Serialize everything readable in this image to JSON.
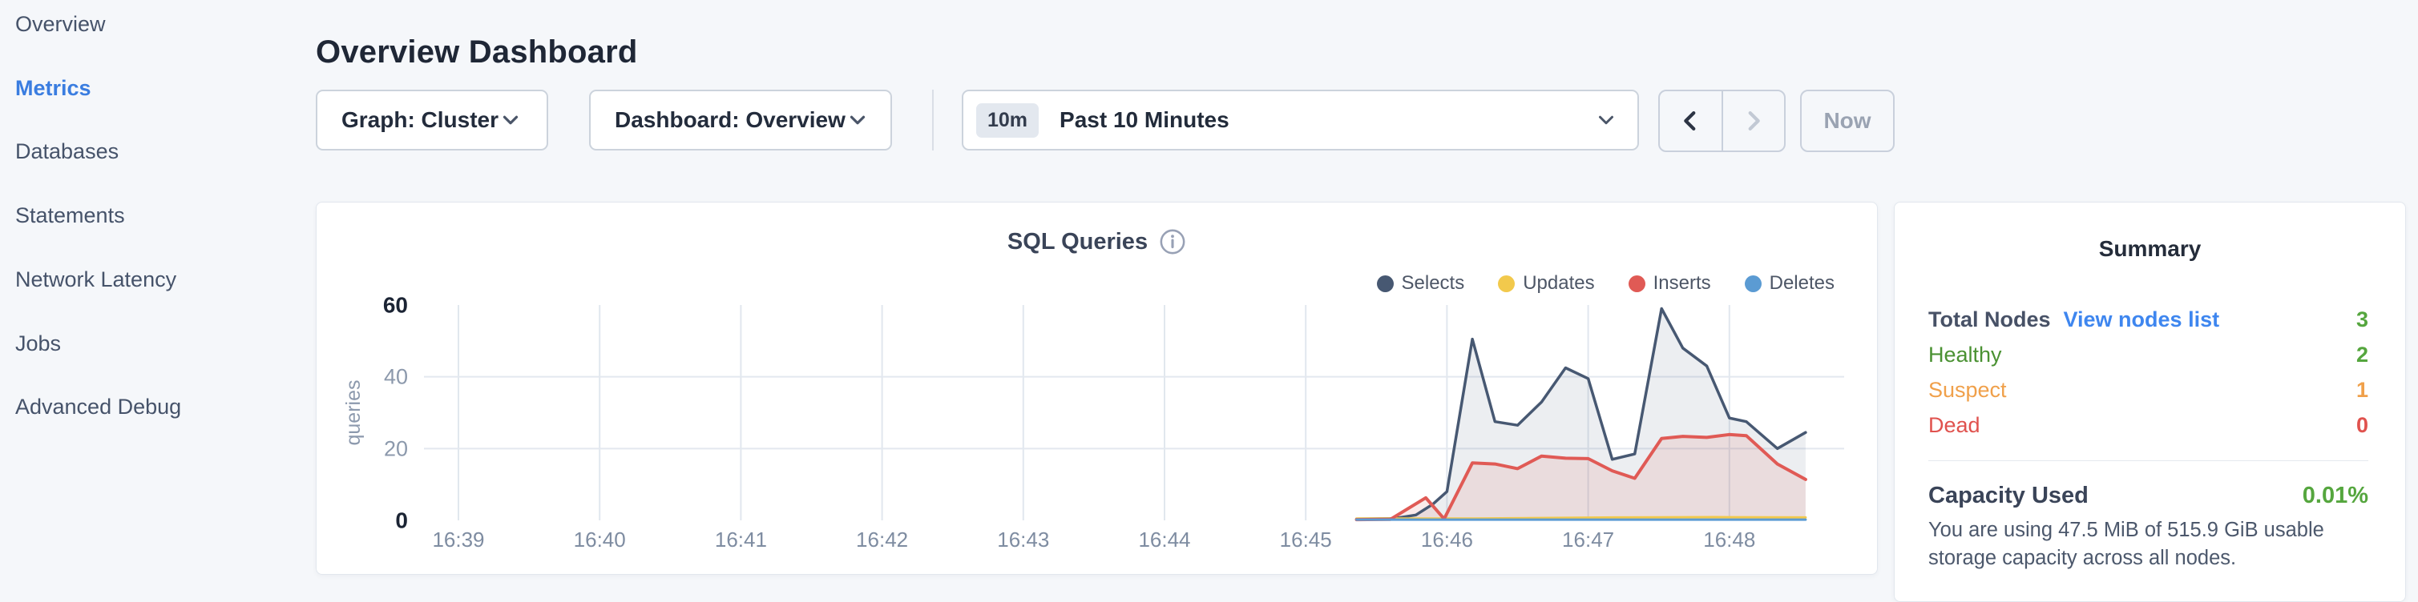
{
  "sidebar": {
    "items": [
      {
        "label": "Overview",
        "active": false
      },
      {
        "label": "Metrics",
        "active": true
      },
      {
        "label": "Databases",
        "active": false
      },
      {
        "label": "Statements",
        "active": false
      },
      {
        "label": "Network Latency",
        "active": false
      },
      {
        "label": "Jobs",
        "active": false
      },
      {
        "label": "Advanced Debug",
        "active": false
      }
    ],
    "active_color": "#3a7de0"
  },
  "header": {
    "title": "Overview Dashboard"
  },
  "controls": {
    "graph_dropdown": {
      "label": "Graph: Cluster"
    },
    "dashboard_dropdown": {
      "label": "Dashboard: Overview"
    },
    "time_window": {
      "badge": "10m",
      "label": "Past 10 Minutes"
    },
    "now_button": {
      "label": "Now",
      "disabled": true
    },
    "prev_arrow": {
      "enabled": true
    },
    "next_arrow": {
      "enabled": false
    }
  },
  "chart_data": {
    "type": "line",
    "title": "SQL Queries",
    "ylabel": "queries",
    "xlabel": "",
    "x_unit": "minutes after 16:39",
    "xlim": [
      -0.26,
      9.8
    ],
    "ylim": [
      0,
      60
    ],
    "grid": true,
    "grid_y_values": [
      20,
      40
    ],
    "legend_position": "top-right",
    "x_ticks": [
      {
        "m": 0,
        "label": "16:39"
      },
      {
        "m": 1,
        "label": "16:40"
      },
      {
        "m": 2,
        "label": "16:41"
      },
      {
        "m": 3,
        "label": "16:42"
      },
      {
        "m": 4,
        "label": "16:43"
      },
      {
        "m": 5,
        "label": "16:44"
      },
      {
        "m": 6,
        "label": "16:45"
      },
      {
        "m": 7,
        "label": "16:46"
      },
      {
        "m": 8,
        "label": "16:47"
      },
      {
        "m": 9,
        "label": "16:48"
      }
    ],
    "y_ticks": [
      {
        "v": 0,
        "label": "0",
        "bold": true
      },
      {
        "v": 20,
        "label": "20",
        "bold": false
      },
      {
        "v": 40,
        "label": "40",
        "bold": false
      },
      {
        "v": 60,
        "label": "60",
        "bold": true
      }
    ],
    "series": [
      {
        "name": "Selects",
        "color": "#475872",
        "fill": "rgba(71,88,114,0.10)",
        "width": 3.5,
        "points": [
          [
            6.36,
            0.4
          ],
          [
            6.62,
            0.5
          ],
          [
            6.78,
            1.5
          ],
          [
            6.9,
            4.5
          ],
          [
            7.0,
            8
          ],
          [
            7.18,
            50.5
          ],
          [
            7.34,
            27.5
          ],
          [
            7.5,
            26.5
          ],
          [
            7.67,
            33
          ],
          [
            7.84,
            42.5
          ],
          [
            8.0,
            39.5
          ],
          [
            8.17,
            17
          ],
          [
            8.33,
            18.5
          ],
          [
            8.52,
            59
          ],
          [
            8.67,
            48
          ],
          [
            8.84,
            43
          ],
          [
            9.0,
            28.5
          ],
          [
            9.12,
            27.5
          ],
          [
            9.34,
            20
          ],
          [
            9.54,
            24.5
          ]
        ]
      },
      {
        "name": "Updates",
        "color": "#f2c94c",
        "fill": "none",
        "width": 3,
        "points": [
          [
            6.36,
            0.5
          ],
          [
            7.2,
            0.5
          ],
          [
            8.2,
            0.8
          ],
          [
            8.9,
            0.9
          ],
          [
            9.54,
            0.8
          ]
        ]
      },
      {
        "name": "Inserts",
        "color": "#e05a55",
        "fill": "rgba(224,90,85,0.12)",
        "width": 4,
        "points": [
          [
            6.36,
            0.2
          ],
          [
            6.6,
            0.3
          ],
          [
            6.85,
            6.3
          ],
          [
            6.98,
            0.4
          ],
          [
            7.18,
            16
          ],
          [
            7.34,
            15.7
          ],
          [
            7.5,
            14.4
          ],
          [
            7.67,
            17.9
          ],
          [
            7.84,
            17.3
          ],
          [
            8.0,
            17.2
          ],
          [
            8.17,
            13.8
          ],
          [
            8.33,
            11.7
          ],
          [
            8.52,
            22.8
          ],
          [
            8.67,
            23.4
          ],
          [
            8.84,
            23.1
          ],
          [
            9.0,
            23.9
          ],
          [
            9.12,
            23.6
          ],
          [
            9.34,
            15.7
          ],
          [
            9.54,
            11.4
          ]
        ]
      },
      {
        "name": "Deletes",
        "color": "#5b9bd3",
        "fill": "none",
        "width": 3,
        "points": [
          [
            6.36,
            0.2
          ],
          [
            9.54,
            0.2
          ]
        ]
      }
    ]
  },
  "summary": {
    "heading": "Summary",
    "rows": [
      {
        "label": "Total Nodes",
        "bold": true,
        "link": "View nodes list",
        "value": "3",
        "label_color": "#475166",
        "value_color": "#55a63e"
      },
      {
        "label": "Healthy",
        "bold": false,
        "link": null,
        "value": "2",
        "label_color": "#4a9132",
        "value_color": "#55a63e"
      },
      {
        "label": "Suspect",
        "bold": false,
        "link": null,
        "value": "1",
        "label_color": "#f0a04a",
        "value_color": "#f0a04a"
      },
      {
        "label": "Dead",
        "bold": false,
        "link": null,
        "value": "0",
        "label_color": "#e0524e",
        "value_color": "#e0524e"
      }
    ],
    "capacity": {
      "label": "Capacity Used",
      "value": "0.01%",
      "value_color": "#55a63e",
      "description": "You are using 47.5 MiB of 515.9 GiB usable storage capacity across all nodes."
    }
  }
}
